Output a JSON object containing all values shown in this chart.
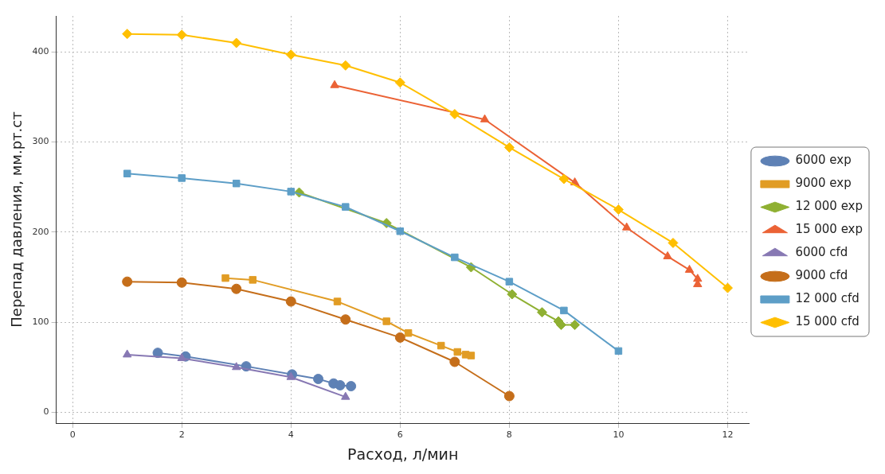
{
  "chart_data": {
    "type": "line",
    "xlabel": "Расход, л/мин",
    "ylabel": "Перепад давления, мм.рт.ст",
    "xlim": [
      -0.3,
      12.4
    ],
    "ylim": [
      -12,
      440
    ],
    "xticks": [
      0,
      2,
      4,
      6,
      8,
      10,
      12
    ],
    "yticks": [
      0,
      100,
      200,
      300,
      400
    ],
    "grid": true,
    "legend": "right",
    "line_style": "solid",
    "series": [
      {
        "name": "6000 exp",
        "color": "#5e81b5",
        "marker": "circle",
        "x": [
          1.56,
          2.07,
          3.18,
          4.02,
          4.5,
          4.78,
          4.9,
          5.1
        ],
        "values": [
          66,
          62,
          51,
          42,
          37,
          32,
          30,
          29
        ]
      },
      {
        "name": "9000 exp",
        "color": "#e19c24",
        "marker": "square",
        "x": [
          2.8,
          3.3,
          4.85,
          5.75,
          6.15,
          6.75,
          7.05,
          7.2,
          7.3
        ],
        "values": [
          149,
          147,
          123,
          101,
          88,
          74,
          67,
          64,
          63
        ]
      },
      {
        "name": "12 000 exp",
        "color": "#8fb032",
        "marker": "diamond",
        "x": [
          4.15,
          5.75,
          7.3,
          8.05,
          8.6,
          8.9,
          8.95,
          9.2
        ],
        "values": [
          244,
          210,
          161,
          131,
          111,
          101,
          97,
          97
        ]
      },
      {
        "name": "15 000 exp",
        "color": "#eb6235",
        "marker": "triangle",
        "x": [
          4.8,
          7.55,
          9.2,
          10.15,
          10.9,
          11.3,
          11.45,
          11.45
        ],
        "values": [
          363,
          325,
          255,
          205,
          173,
          158,
          148,
          142
        ]
      },
      {
        "name": "6000 cfd",
        "color": "#8778b3",
        "marker": "triangle",
        "x": [
          1,
          2,
          3,
          4,
          5
        ],
        "values": [
          64,
          60,
          50,
          39,
          17
        ]
      },
      {
        "name": "9000 cfd",
        "color": "#c56e1a",
        "marker": "circle",
        "x": [
          1,
          2,
          3,
          4,
          5,
          6,
          7,
          8
        ],
        "values": [
          145,
          144,
          137,
          123,
          103,
          83,
          56,
          18
        ]
      },
      {
        "name": "12 000 cfd",
        "color": "#5d9ec7",
        "marker": "square",
        "x": [
          1,
          2,
          3,
          4,
          5,
          6,
          7,
          8,
          9,
          10
        ],
        "values": [
          265,
          260,
          254,
          245,
          228,
          201,
          172,
          145,
          113,
          68
        ]
      },
      {
        "name": "15 000 cfd",
        "color": "#ffbf00",
        "marker": "diamond",
        "x": [
          1,
          2,
          3,
          4,
          5,
          6,
          7,
          8,
          9,
          10,
          11,
          12
        ],
        "values": [
          420,
          419,
          410,
          397,
          385,
          366,
          331,
          294,
          259,
          225,
          188,
          138
        ]
      }
    ]
  }
}
